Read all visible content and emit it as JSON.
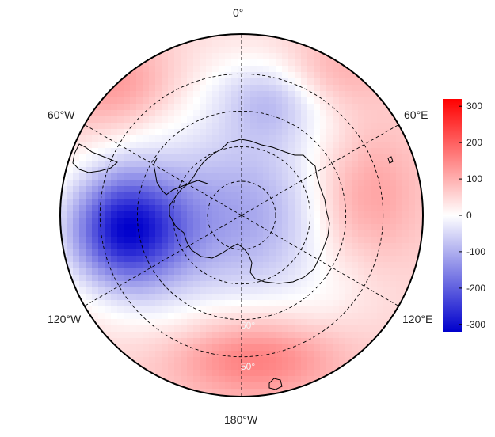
{
  "map": {
    "projection": "south-polar-stereographic",
    "longitude_labels": {
      "top": "0°",
      "upper_right": "60°E",
      "lower_right": "120°E",
      "bottom": "180°W",
      "lower_left": "120°W",
      "upper_left": "60°W"
    },
    "latitude_labels": {
      "inner": "60°",
      "outer": "50°"
    },
    "graticule_latitudes": [
      80,
      70,
      60,
      50
    ],
    "graticule_longitudes": [
      0,
      60,
      120,
      180,
      240,
      300
    ],
    "colors": {
      "negative": "#0000cc",
      "zero": "#ffffff",
      "positive": "#ff0000",
      "coastline": "#000000",
      "grid": "#000000"
    }
  },
  "colorbar": {
    "min": -320,
    "max": 320,
    "ticks": [
      "300",
      "200",
      "100",
      "0",
      "-100",
      "-200",
      "-300"
    ],
    "tick_values": [
      300,
      200,
      100,
      0,
      -100,
      -200,
      -300
    ]
  }
}
